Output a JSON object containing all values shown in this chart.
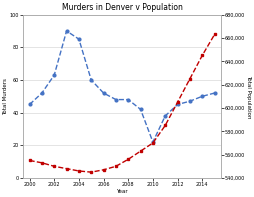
{
  "title": "Murders in Denver v Population",
  "xlabel": "Year",
  "ylabel_left": "Total Murders",
  "ylabel_right": "Total Population",
  "years": [
    2000,
    2001,
    2002,
    2003,
    2004,
    2005,
    2006,
    2007,
    2008,
    2009,
    2010,
    2011,
    2012,
    2013,
    2014,
    2015
  ],
  "murders": [
    45,
    52,
    63,
    90,
    85,
    60,
    52,
    48,
    48,
    42,
    22,
    38,
    45,
    47,
    50,
    52
  ],
  "population": [
    555000,
    553000,
    550000,
    548000,
    546000,
    545000,
    547000,
    550000,
    556000,
    563000,
    570000,
    585000,
    605000,
    625000,
    645000,
    663000
  ],
  "murder_color": "#4472C4",
  "pop_color": "#C00000",
  "ylim_left": [
    0,
    100
  ],
  "ylim_right": [
    540000,
    680000
  ],
  "xlim": [
    1999.5,
    2015.5
  ],
  "background_color": "#ffffff",
  "grid_color": "#d0d0d0",
  "title_fontsize": 5.5,
  "label_fontsize": 4.0,
  "tick_fontsize": 3.5,
  "linewidth": 1.0,
  "markersize": 2.0
}
